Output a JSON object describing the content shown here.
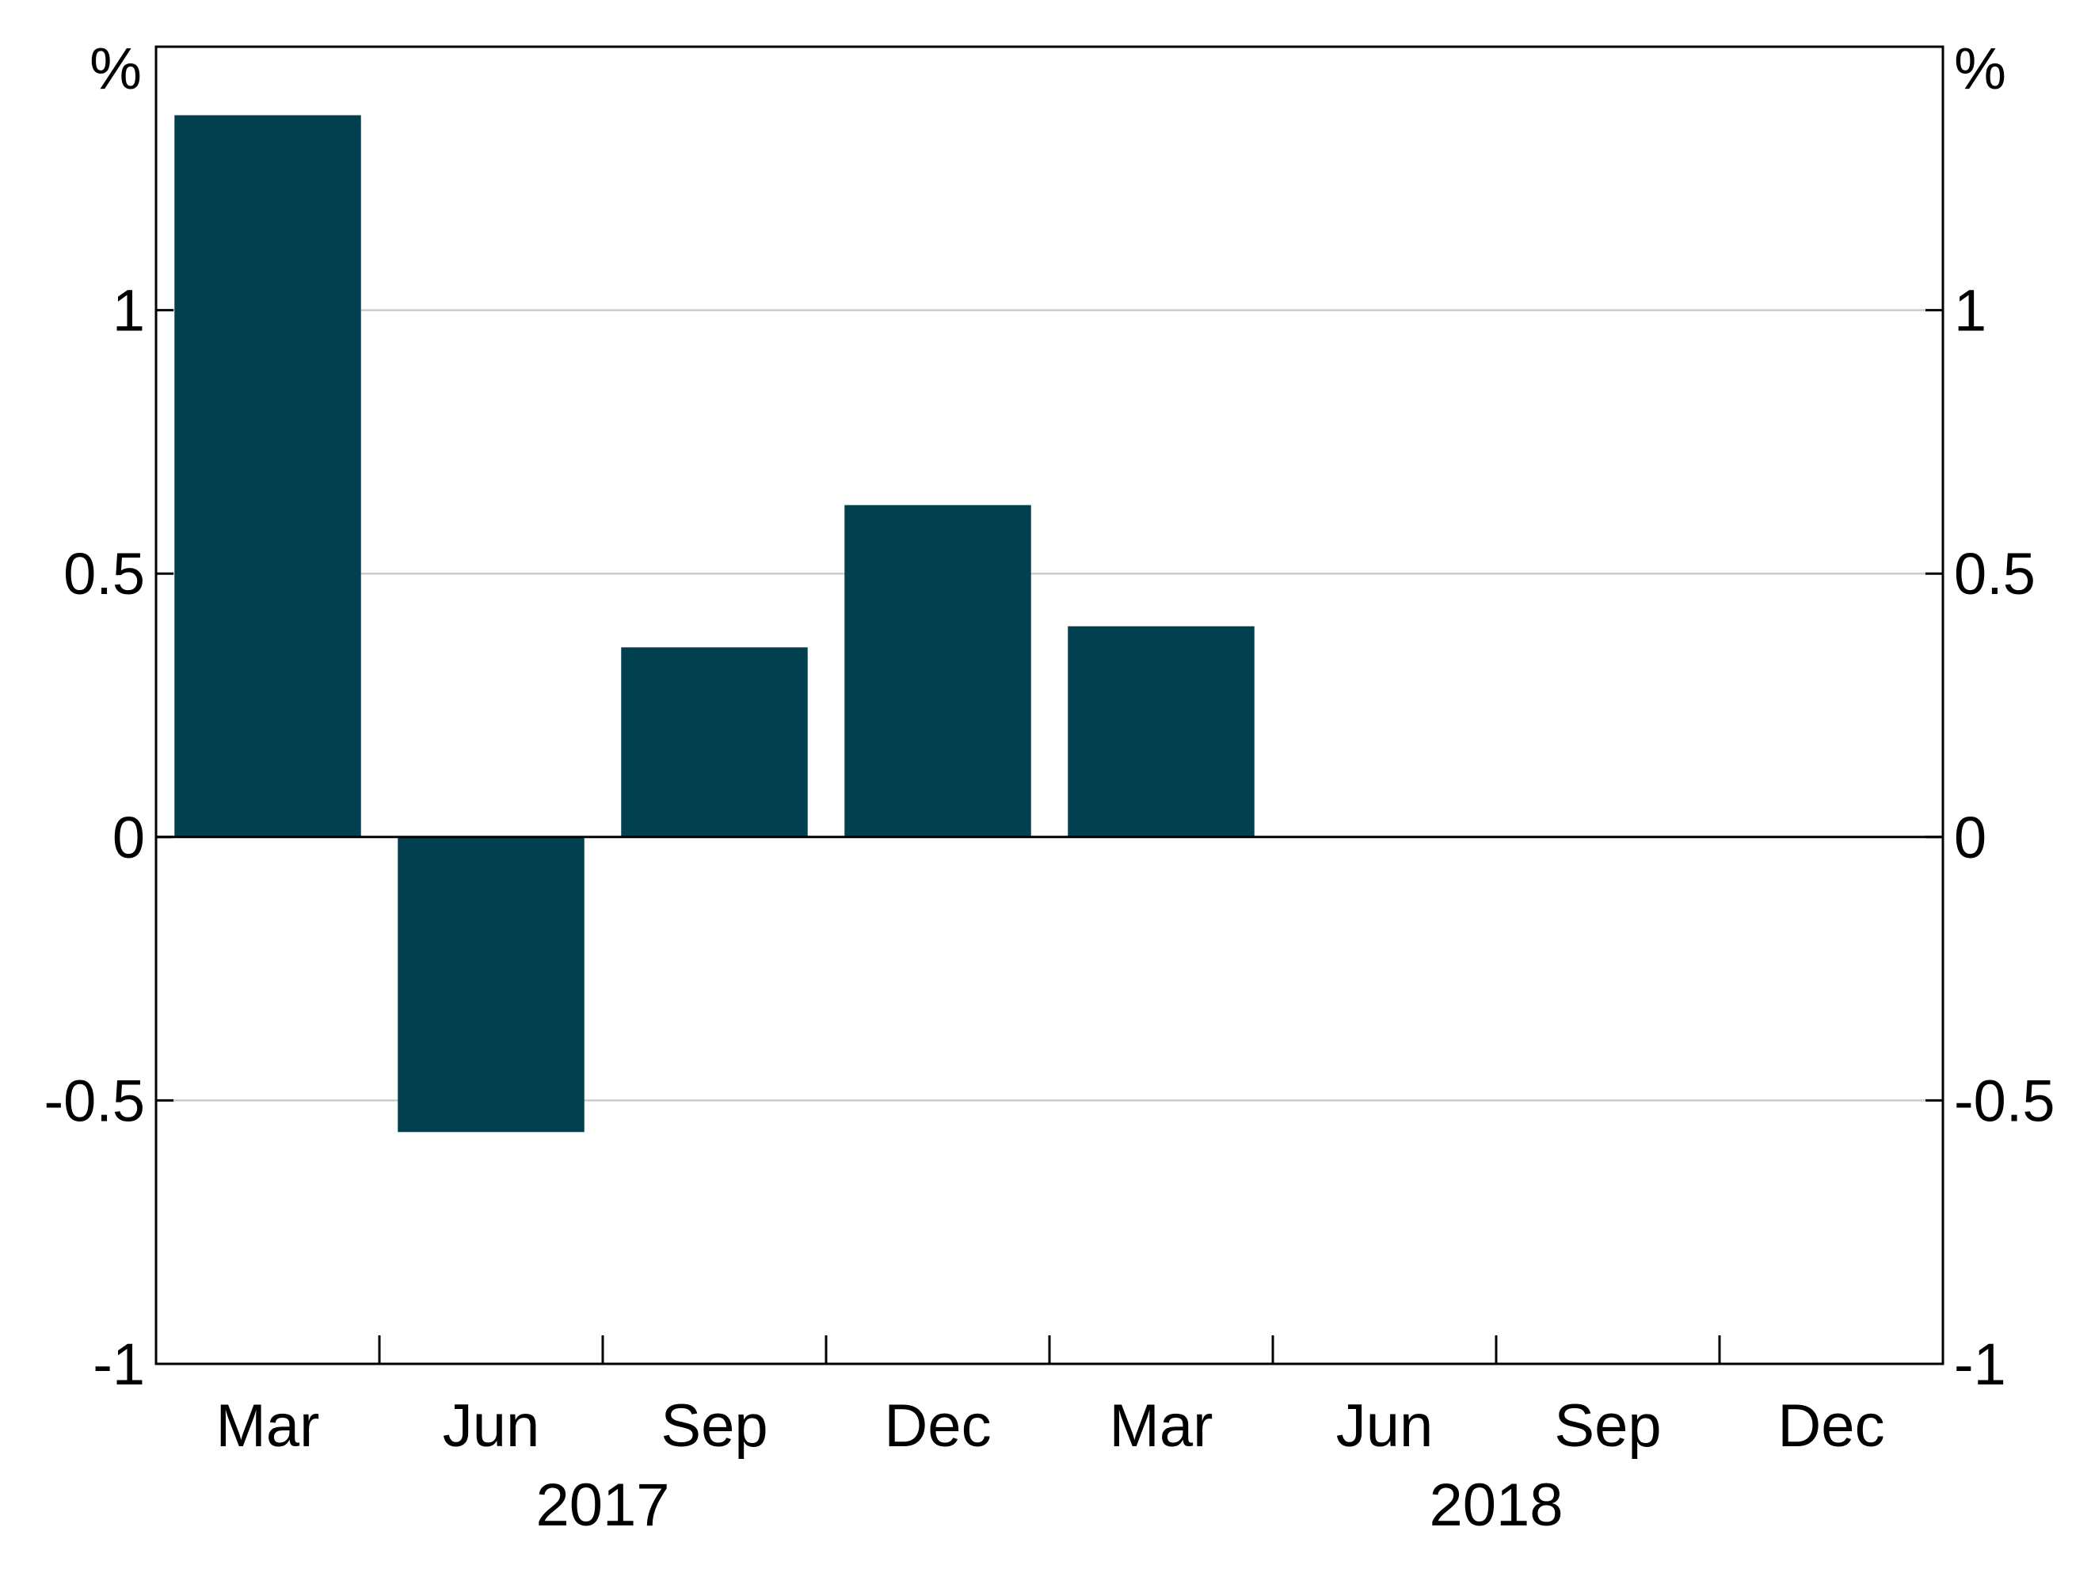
{
  "chart_data": {
    "type": "bar",
    "categories": [
      "Mar",
      "Jun",
      "Sep",
      "Dec",
      "Mar",
      "Jun",
      "Sep",
      "Dec"
    ],
    "years": [
      {
        "label": "2017",
        "from": 0,
        "to": 3
      },
      {
        "label": "2018",
        "from": 4,
        "to": 7
      }
    ],
    "values": [
      1.37,
      -0.56,
      0.36,
      0.63,
      0.4,
      null,
      null,
      null
    ],
    "ylim": [
      -1,
      1.5
    ],
    "yticks": [
      -1,
      -0.5,
      0,
      0.5,
      1
    ],
    "ytick_labels": [
      "-1",
      "-0.5",
      "0",
      "0.5",
      "1"
    ],
    "yunit_left": "%",
    "yunit_right": "%",
    "gridlines": true,
    "bar_color": "#024050",
    "grid_color": "#cccccc"
  }
}
